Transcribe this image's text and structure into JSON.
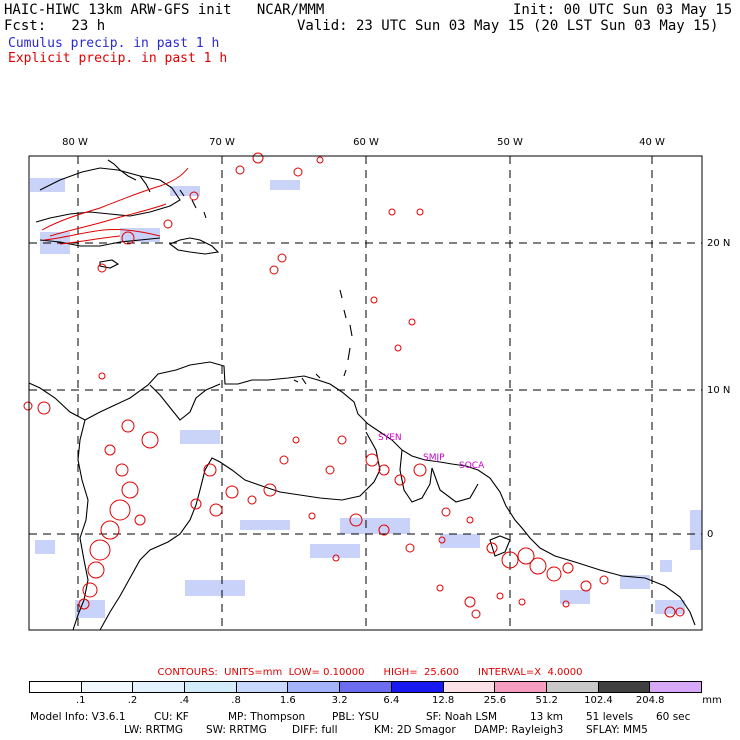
{
  "header": {
    "left_line1": "HAIC-HIWC 13km ARW-GFS init   NCAR/MMM",
    "left_line2": "Fcst:   23 h",
    "right_line1": "Init: 00 UTC Sun 03 May 15",
    "right_line2": "Valid: 23 UTC Sun 03 May 15 (20 LST Sun 03 May 15)",
    "legend_cumulus": "Cumulus precip. in past 1 h",
    "legend_explicit": "Explicit precip. in past 1 h"
  },
  "map": {
    "lon_labels": [
      "80 W",
      "70 W",
      "60 W",
      "50 W",
      "40 W"
    ],
    "lat_labels": [
      "20 N",
      "10 N",
      "0"
    ],
    "stations": [
      "SYEN",
      "SMJP",
      "SOCA"
    ],
    "colors": {
      "cumulus": "#9aa6f2",
      "explicit": "#e00000",
      "land": "#000000",
      "station": "#cc00cc"
    }
  },
  "contours": {
    "label": "CONTOURS:  UNITS=mm  LOW= 0.10000      HIGH=  25.600      INTERVAL=X  4.0000"
  },
  "colorbar": {
    "ticks": [
      ".1",
      ".2",
      ".4",
      ".8",
      "1.6",
      "3.2",
      "6.4",
      "12.8",
      "25.6",
      "51.2",
      "102.4",
      "204.8"
    ],
    "unit": "mm",
    "colors": [
      "#ffffff",
      "#f2f8ff",
      "#e4f2ff",
      "#d2ecfa",
      "#c8d8ff",
      "#a4b2fa",
      "#6c6cf0",
      "#1818f0",
      "#fce0e8",
      "#f59ec0",
      "#c8c8c8",
      "#404040",
      "#d8a8f8"
    ]
  },
  "footer": {
    "line1": [
      "Model Info: V3.6.1",
      "CU: KF",
      "MP: Thompson",
      "PBL: YSU",
      "SF: Noah LSM",
      "13 km",
      "51 levels",
      "60 sec"
    ],
    "line2": [
      "LW: RRTMG",
      "SW: RRTMG",
      "DIFF: full",
      "KM: 2D Smagor",
      "DAMP: Rayleigh3",
      "SFLAY: MM5"
    ]
  }
}
